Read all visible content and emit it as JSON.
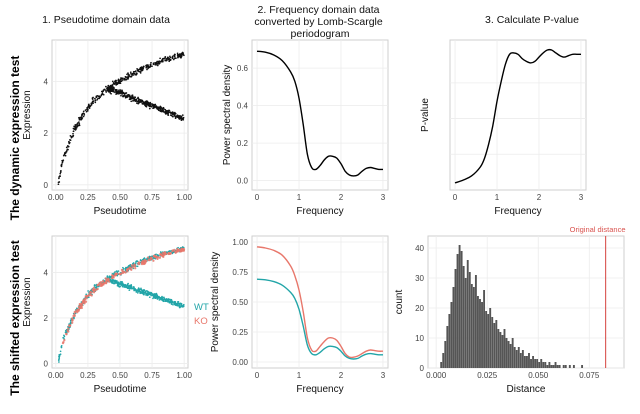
{
  "columns": [
    {
      "lines": [
        "1. Pseudotime domain data"
      ]
    },
    {
      "lines": [
        "2. Frequency domain data",
        "converted by Lomb-Scargle",
        "periodogram"
      ]
    },
    {
      "lines": [
        "3. Calculate P-value"
      ]
    }
  ],
  "rows": [
    {
      "label": "The dynamic expression test"
    },
    {
      "label": "The shifted expression test"
    }
  ],
  "colors": {
    "point": "#111111",
    "wt": "#22a5a8",
    "ko": "#e8776b",
    "line": "#000000",
    "hist": "#555555",
    "vline": "#d9534f"
  },
  "chart_data": [
    {
      "id": "dyn-pseudo",
      "type": "scatter",
      "xlabel": "Pseudotime",
      "ylabel": "Expression",
      "xlim": [
        -0.03,
        1.03
      ],
      "ylim": [
        -0.2,
        5.6
      ],
      "xticks": [
        "0.00",
        "0.25",
        "0.50",
        "0.75",
        "1.00"
      ],
      "xtick_values": [
        0,
        0.25,
        0.5,
        0.75,
        1
      ],
      "yticks": [
        "0",
        "2",
        "4"
      ],
      "ytick_values": [
        0,
        2,
        4
      ],
      "grid": true,
      "series": [
        {
          "color": "point",
          "x": [
            0.02,
            0.05,
            0.1,
            0.15,
            0.2,
            0.25,
            0.3,
            0.35,
            0.4,
            0.45,
            0.5,
            0.55,
            0.6,
            0.65,
            0.7,
            0.75,
            0.8,
            0.85,
            0.9,
            0.95,
            1.0
          ],
          "y": [
            0.1,
            0.9,
            1.6,
            2.2,
            2.6,
            3.0,
            3.3,
            3.5,
            3.7,
            3.9,
            4.0,
            4.15,
            4.3,
            4.45,
            4.55,
            4.65,
            4.75,
            4.85,
            4.9,
            5.0,
            5.05
          ]
        },
        {
          "color": "point",
          "x": [
            0.4,
            0.45,
            0.5,
            0.55,
            0.6,
            0.65,
            0.7,
            0.75,
            0.8,
            0.85,
            0.9,
            0.95,
            1.0
          ],
          "y": [
            3.7,
            3.65,
            3.55,
            3.45,
            3.35,
            3.25,
            3.15,
            3.05,
            2.95,
            2.85,
            2.75,
            2.65,
            2.55
          ]
        }
      ]
    },
    {
      "id": "dyn-freq",
      "type": "line",
      "xlabel": "Frequency",
      "ylabel": "Power spectral density",
      "xlim": [
        -0.12,
        3.12
      ],
      "ylim": [
        -0.05,
        0.75
      ],
      "xticks": [
        "0",
        "1",
        "2",
        "3"
      ],
      "xtick_values": [
        0,
        1,
        2,
        3
      ],
      "yticks": [
        "0.0",
        "0.2",
        "0.4",
        "0.6"
      ],
      "ytick_values": [
        0,
        0.2,
        0.4,
        0.6
      ],
      "grid": true,
      "series": [
        {
          "color": "line",
          "x": [
            0,
            0.2,
            0.4,
            0.6,
            0.8,
            0.9,
            1.0,
            1.1,
            1.2,
            1.3,
            1.4,
            1.5,
            1.6,
            1.7,
            1.8,
            1.9,
            2.0,
            2.1,
            2.2,
            2.3,
            2.4,
            2.5,
            2.6,
            2.7,
            2.8,
            2.9,
            3.0
          ],
          "y": [
            0.69,
            0.685,
            0.67,
            0.64,
            0.58,
            0.53,
            0.44,
            0.3,
            0.14,
            0.07,
            0.06,
            0.08,
            0.11,
            0.13,
            0.13,
            0.12,
            0.09,
            0.05,
            0.03,
            0.025,
            0.03,
            0.05,
            0.065,
            0.07,
            0.065,
            0.06,
            0.06
          ]
        }
      ]
    },
    {
      "id": "dyn-pval",
      "type": "line",
      "xlabel": "Frequency",
      "ylabel": "P-value",
      "xlim": [
        -0.12,
        3.12
      ],
      "ylim": [
        0,
        1.05
      ],
      "xticks": [
        "0",
        "1",
        "2",
        "3"
      ],
      "xtick_values": [
        0,
        1,
        2,
        3
      ],
      "yticks": [],
      "ytick_values": [],
      "grid": true,
      "series": [
        {
          "color": "line",
          "x": [
            0,
            0.2,
            0.4,
            0.6,
            0.7,
            0.8,
            0.9,
            1.0,
            1.1,
            1.2,
            1.3,
            1.4,
            1.5,
            1.6,
            1.7,
            1.8,
            1.9,
            2.0,
            2.1,
            2.2,
            2.3,
            2.4,
            2.5,
            2.6,
            2.7,
            2.8,
            2.9,
            3.0
          ],
          "y": [
            0.05,
            0.07,
            0.1,
            0.16,
            0.22,
            0.32,
            0.45,
            0.62,
            0.76,
            0.88,
            0.95,
            0.96,
            0.95,
            0.92,
            0.9,
            0.89,
            0.9,
            0.93,
            0.96,
            0.98,
            0.98,
            0.96,
            0.94,
            0.93,
            0.94,
            0.95,
            0.95,
            0.95
          ]
        }
      ]
    },
    {
      "id": "shift-pseudo",
      "type": "scatter",
      "xlabel": "Pseudotime",
      "ylabel": "Expression",
      "xlim": [
        -0.03,
        1.03
      ],
      "ylim": [
        -0.2,
        5.6
      ],
      "xticks": [
        "0.00",
        "0.25",
        "0.50",
        "0.75",
        "1.00"
      ],
      "xtick_values": [
        0,
        0.25,
        0.5,
        0.75,
        1
      ],
      "yticks": [
        "0",
        "2",
        "4"
      ],
      "ytick_values": [
        0,
        2,
        4
      ],
      "grid": true,
      "legend": [
        "WT",
        "KO"
      ],
      "series": [
        {
          "name": "WT",
          "color": "wt",
          "x": [
            0.02,
            0.05,
            0.1,
            0.15,
            0.2,
            0.25,
            0.3,
            0.35,
            0.4,
            0.45,
            0.5,
            0.55,
            0.6,
            0.65,
            0.7,
            0.75,
            0.8,
            0.85,
            0.9,
            0.95,
            1.0
          ],
          "y": [
            0.1,
            0.9,
            1.6,
            2.2,
            2.6,
            3.0,
            3.3,
            3.5,
            3.7,
            3.9,
            4.0,
            4.15,
            4.3,
            4.45,
            4.55,
            4.65,
            4.75,
            4.85,
            4.9,
            5.0,
            5.05
          ]
        },
        {
          "name": "WT",
          "color": "wt",
          "x": [
            0.4,
            0.45,
            0.5,
            0.55,
            0.6,
            0.65,
            0.7,
            0.75,
            0.8,
            0.85,
            0.9,
            0.95,
            1.0
          ],
          "y": [
            3.7,
            3.6,
            3.5,
            3.4,
            3.3,
            3.2,
            3.1,
            3.0,
            2.9,
            2.8,
            2.7,
            2.6,
            2.5
          ]
        },
        {
          "name": "KO",
          "color": "ko",
          "x": [
            0.05,
            0.1,
            0.15,
            0.2,
            0.25,
            0.3,
            0.35,
            0.4,
            0.45,
            0.5,
            0.55,
            0.6,
            0.65,
            0.7,
            0.75,
            0.8,
            0.85,
            0.9,
            0.95,
            1.0
          ],
          "y": [
            0.8,
            1.55,
            2.15,
            2.6,
            2.95,
            3.25,
            3.45,
            3.65,
            3.85,
            3.95,
            4.1,
            4.25,
            4.4,
            4.5,
            4.6,
            4.7,
            4.8,
            4.85,
            4.95,
            5.0
          ]
        }
      ]
    },
    {
      "id": "shift-freq",
      "type": "line",
      "xlabel": "Frequency",
      "ylabel": "Power spectral density",
      "xlim": [
        -0.12,
        3.12
      ],
      "ylim": [
        -0.05,
        1.05
      ],
      "xticks": [
        "0",
        "1",
        "2",
        "3"
      ],
      "xtick_values": [
        0,
        1,
        2,
        3
      ],
      "yticks": [
        "0.00",
        "0.25",
        "0.50",
        "0.75",
        "1.00"
      ],
      "ytick_values": [
        0,
        0.25,
        0.5,
        0.75,
        1
      ],
      "grid": true,
      "series": [
        {
          "color": "ko",
          "x": [
            0,
            0.2,
            0.4,
            0.6,
            0.8,
            0.9,
            1.0,
            1.1,
            1.2,
            1.3,
            1.4,
            1.5,
            1.6,
            1.7,
            1.8,
            1.9,
            2.0,
            2.1,
            2.2,
            2.3,
            2.4,
            2.5,
            2.6,
            2.7,
            2.8,
            2.9,
            3.0
          ],
          "y": [
            0.96,
            0.95,
            0.93,
            0.89,
            0.8,
            0.72,
            0.6,
            0.42,
            0.2,
            0.1,
            0.09,
            0.13,
            0.17,
            0.2,
            0.2,
            0.18,
            0.13,
            0.07,
            0.04,
            0.04,
            0.05,
            0.07,
            0.09,
            0.1,
            0.095,
            0.09,
            0.09
          ]
        },
        {
          "color": "wt",
          "x": [
            0,
            0.2,
            0.4,
            0.6,
            0.8,
            0.9,
            1.0,
            1.1,
            1.2,
            1.3,
            1.4,
            1.5,
            1.6,
            1.7,
            1.8,
            1.9,
            2.0,
            2.1,
            2.2,
            2.3,
            2.4,
            2.5,
            2.6,
            2.7,
            2.8,
            2.9,
            3.0
          ],
          "y": [
            0.69,
            0.685,
            0.67,
            0.64,
            0.58,
            0.53,
            0.44,
            0.3,
            0.14,
            0.07,
            0.06,
            0.08,
            0.11,
            0.13,
            0.13,
            0.12,
            0.09,
            0.05,
            0.03,
            0.025,
            0.03,
            0.05,
            0.065,
            0.07,
            0.065,
            0.06,
            0.06
          ]
        }
      ]
    },
    {
      "id": "shift-hist",
      "type": "bar",
      "xlabel": "Distance",
      "ylabel": "count",
      "xlim": [
        -0.004,
        0.092
      ],
      "ylim": [
        0,
        44
      ],
      "xticks": [
        "0.000",
        "0.025",
        "0.050",
        "0.075"
      ],
      "xtick_values": [
        0,
        0.025,
        0.05,
        0.075
      ],
      "yticks": [
        "0",
        "10",
        "20",
        "30",
        "40"
      ],
      "ytick_values": [
        0,
        10,
        20,
        30,
        40
      ],
      "grid": true,
      "bin_start": 0.002,
      "bin_width": 0.001,
      "values": [
        2,
        5,
        9,
        14,
        18,
        22,
        27,
        33,
        38,
        41,
        39,
        34,
        30,
        36,
        32,
        28,
        27,
        31,
        24,
        23,
        22,
        26,
        19,
        18,
        20,
        17,
        15,
        16,
        13,
        12,
        11,
        13,
        10,
        9,
        8,
        10,
        7,
        6,
        7,
        5,
        6,
        4,
        4,
        5,
        3,
        4,
        3,
        3,
        2,
        3,
        2,
        2,
        1,
        2,
        1,
        1,
        2,
        1,
        1,
        0,
        1,
        1,
        0,
        1,
        0,
        1,
        0,
        0,
        0,
        1
      ],
      "vline": {
        "x": 0.083,
        "label": "Original distance"
      }
    }
  ]
}
